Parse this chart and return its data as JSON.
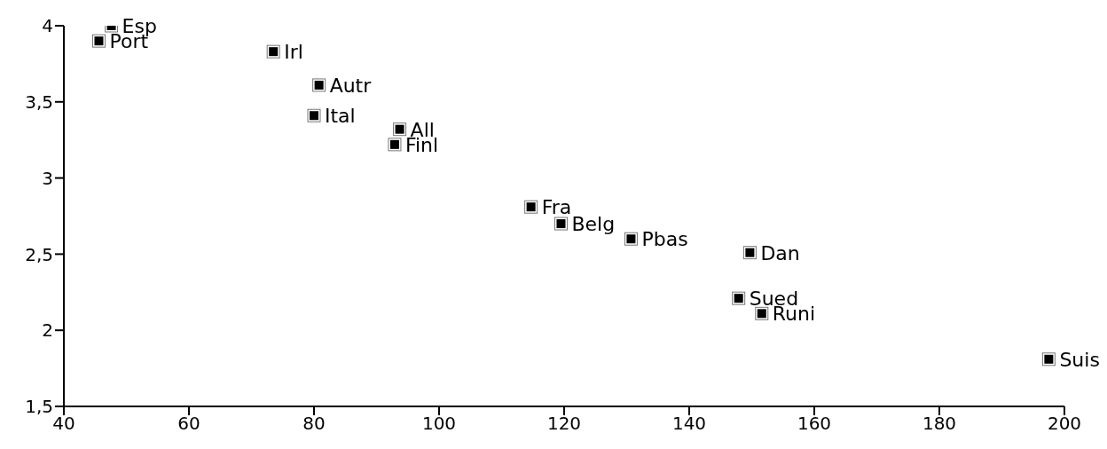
{
  "chart_data": {
    "type": "scatter",
    "x": [
      47.6,
      45.6,
      73.5,
      80.8,
      80,
      93.7,
      92.9,
      114.7,
      119.5,
      130.7,
      149.7,
      147.9,
      151.6,
      197.5
    ],
    "series": [
      {
        "color": "#000000",
        "values": [
          4.0,
          3.9,
          3.83,
          3.61,
          3.41,
          3.32,
          3.22,
          2.81,
          2.7,
          2.6,
          2.51,
          2.21,
          2.11,
          1.81
        ]
      }
    ],
    "annotations": [
      {
        "text": "Esp",
        "x": 47.6,
        "y": 4.0
      },
      {
        "text": "Port",
        "x": 45.6,
        "y": 3.9
      },
      {
        "text": "Irl",
        "x": 73.5,
        "y": 3.83
      },
      {
        "text": "Autr",
        "x": 80.8,
        "y": 3.61
      },
      {
        "text": "Ital",
        "x": 80,
        "y": 3.41
      },
      {
        "text": "All",
        "x": 93.7,
        "y": 3.32
      },
      {
        "text": "Finl",
        "x": 92.9,
        "y": 3.22
      },
      {
        "text": "Fra",
        "x": 114.7,
        "y": 2.81
      },
      {
        "text": "Belg",
        "x": 119.5,
        "y": 2.7
      },
      {
        "text": "Pbas",
        "x": 130.7,
        "y": 2.6
      },
      {
        "text": "Dan",
        "x": 149.7,
        "y": 2.51
      },
      {
        "text": "Sued",
        "x": 147.9,
        "y": 2.21
      },
      {
        "text": "Runi",
        "x": 151.6,
        "y": 2.11
      },
      {
        "text": "Suis",
        "x": 197.5,
        "y": 1.81
      }
    ],
    "xlim": [
      40,
      200
    ],
    "xticks": [
      40,
      60,
      80,
      100,
      120,
      140,
      160,
      180,
      200
    ],
    "ylim": [
      1.5,
      4
    ],
    "yticks": [
      {
        "value": 1.5,
        "label": "1,5"
      },
      2,
      {
        "value": 2.5,
        "label": "2,5"
      },
      3,
      {
        "value": 3.5,
        "label": "3,5"
      },
      4
    ],
    "grid": false,
    "legend": false,
    "marker": "square"
  }
}
